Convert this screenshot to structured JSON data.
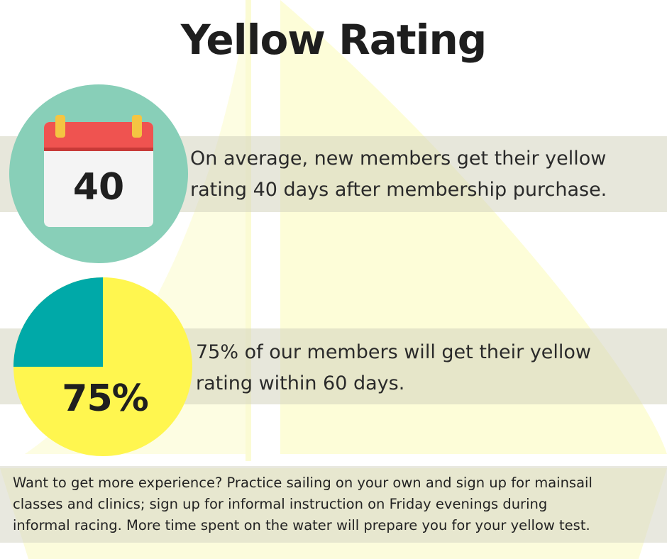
{
  "title": "Yellow Rating",
  "calendar": {
    "number": "40",
    "circle_color": "#88cfb8",
    "header_color": "#ef5350",
    "ring_color": "#f4c542",
    "icon": "calendar-icon"
  },
  "stat1": {
    "line1": "On average, new members get their yellow",
    "line2": "rating 40 days after membership purchase."
  },
  "pie": {
    "label": "75%",
    "percent": 75,
    "fill_color": "#fff64f",
    "remainder_color": "#00a9a8"
  },
  "stat2": {
    "line1": "75% of our members will get their yellow",
    "line2": "rating within 60 days."
  },
  "footer": {
    "line1": "Want to get more experience? Practice sailing on your own and sign up for mainsail",
    "line2": "classes and clinics; sign up for informal instruction on Friday evenings during",
    "line3": "informal racing. More time spent on the water will prepare you for your yellow test."
  }
}
